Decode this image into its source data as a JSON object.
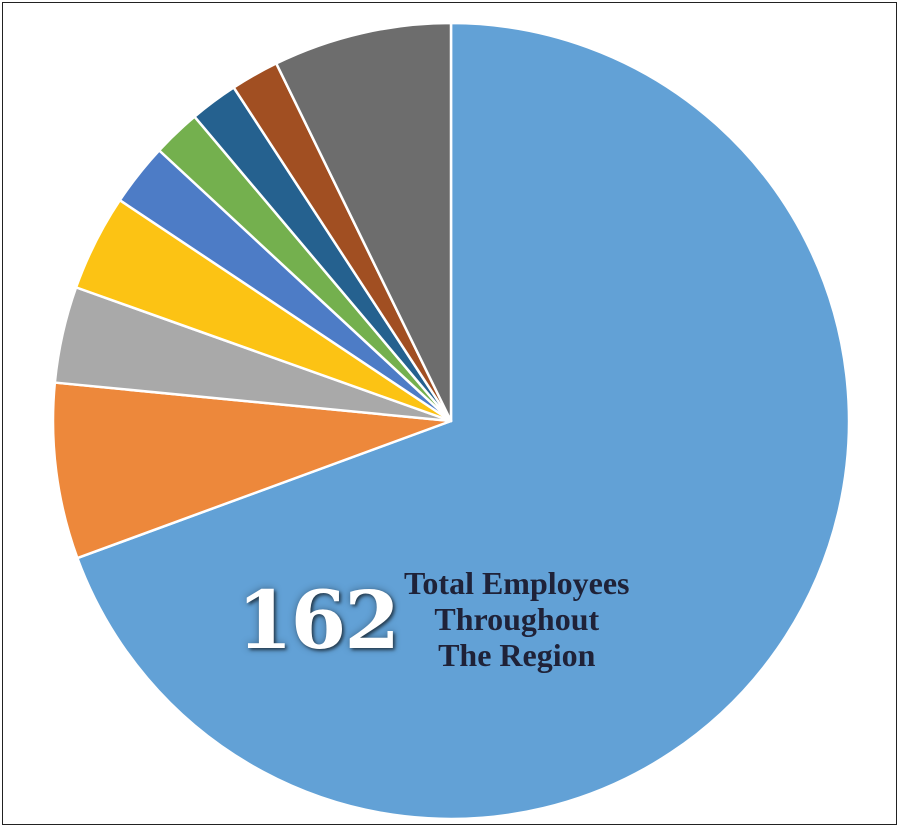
{
  "chart_data": {
    "type": "pie",
    "start": "top",
    "direction": "clockwise",
    "slices": [
      {
        "value": 71.0,
        "color": "#62a1d6"
      },
      {
        "value": 7.3,
        "color": "#ed883b"
      },
      {
        "value": 4.0,
        "color": "#a9a9a9"
      },
      {
        "value": 4.0,
        "color": "#fcc314"
      },
      {
        "value": 2.6,
        "color": "#4d7cc6"
      },
      {
        "value": 2.0,
        "color": "#74b04e"
      },
      {
        "value": 2.0,
        "color": "#25618f"
      },
      {
        "value": 2.0,
        "color": "#a14f22"
      },
      {
        "value": 7.4,
        "color": "#6d6d6d"
      }
    ],
    "slice_border_color": "#ffffff"
  },
  "callout": {
    "total": "162",
    "caption_line1": "Total Employees",
    "caption_line2": "Throughout",
    "caption_line3": "The Region"
  }
}
